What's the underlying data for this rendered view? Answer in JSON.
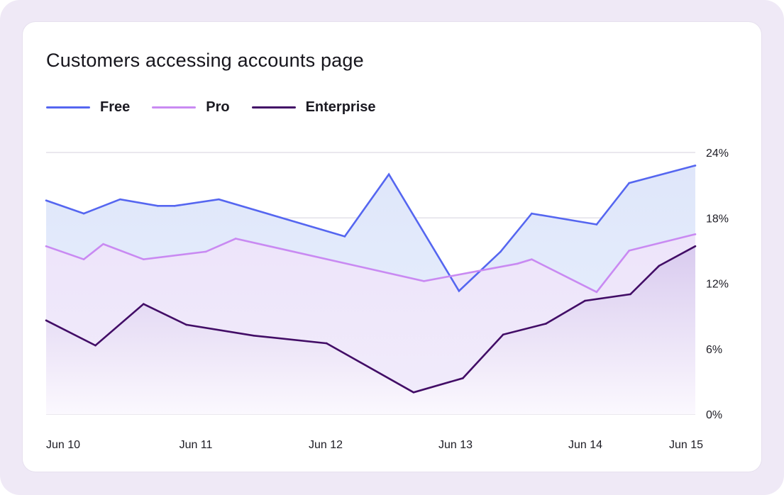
{
  "chart_data": {
    "type": "area",
    "title": "Customers accessing accounts page",
    "xlabel": "",
    "ylabel": "",
    "xlim": [
      10,
      15
    ],
    "ylim": [
      0,
      24
    ],
    "grid": true,
    "legend_position": "top-left",
    "y_axis_side": "right",
    "x_ticks": [
      {
        "value": 10,
        "label": "Jun 10"
      },
      {
        "value": 11,
        "label": "Jun 11"
      },
      {
        "value": 12,
        "label": "Jun 12"
      },
      {
        "value": 13,
        "label": "Jun 13"
      },
      {
        "value": 14,
        "label": "Jun 14"
      },
      {
        "value": 15,
        "label": "Jun 15"
      }
    ],
    "y_ticks": [
      {
        "value": 24,
        "label": "24%"
      },
      {
        "value": 18,
        "label": "18%"
      },
      {
        "value": 12,
        "label": "12%"
      },
      {
        "value": 6,
        "label": "6%"
      },
      {
        "value": 0,
        "label": "0%"
      }
    ],
    "series": [
      {
        "name": "Free",
        "color": "#5566f0",
        "fill_top": "#dfe6fa",
        "fill_bottom": "#e8f1fd",
        "x": [
          10.0,
          10.29,
          10.57,
          10.86,
          10.99,
          11.33,
          12.3,
          12.64,
          13.18,
          13.5,
          13.74,
          14.24,
          14.49,
          15.0
        ],
        "y": [
          19.6,
          18.4,
          19.7,
          19.1,
          19.1,
          19.7,
          16.3,
          22.0,
          11.3,
          14.9,
          18.4,
          17.4,
          21.2,
          22.8
        ]
      },
      {
        "name": "Pro",
        "color": "#c98af2",
        "fill_top": "#ede4fa",
        "fill_bottom": "#f1ecfb",
        "x": [
          10.0,
          10.29,
          10.44,
          10.75,
          11.23,
          11.46,
          12.91,
          13.63,
          13.74,
          14.24,
          14.49,
          15.0
        ],
        "y": [
          15.4,
          14.2,
          15.6,
          14.2,
          14.9,
          16.1,
          12.2,
          13.8,
          14.2,
          11.2,
          15.0,
          16.5
        ]
      },
      {
        "name": "Enterprise",
        "color": "#420d66",
        "fill_top": "#d9cbef",
        "fill_bottom": "#fbf8fe",
        "x": [
          10.0,
          10.38,
          10.75,
          11.08,
          11.6,
          12.16,
          12.83,
          13.21,
          13.52,
          13.85,
          14.15,
          14.5,
          14.72,
          15.0
        ],
        "y": [
          8.6,
          6.3,
          10.1,
          8.2,
          7.2,
          6.5,
          2.0,
          3.3,
          7.3,
          8.3,
          10.4,
          11.0,
          13.6,
          15.4
        ]
      }
    ]
  }
}
